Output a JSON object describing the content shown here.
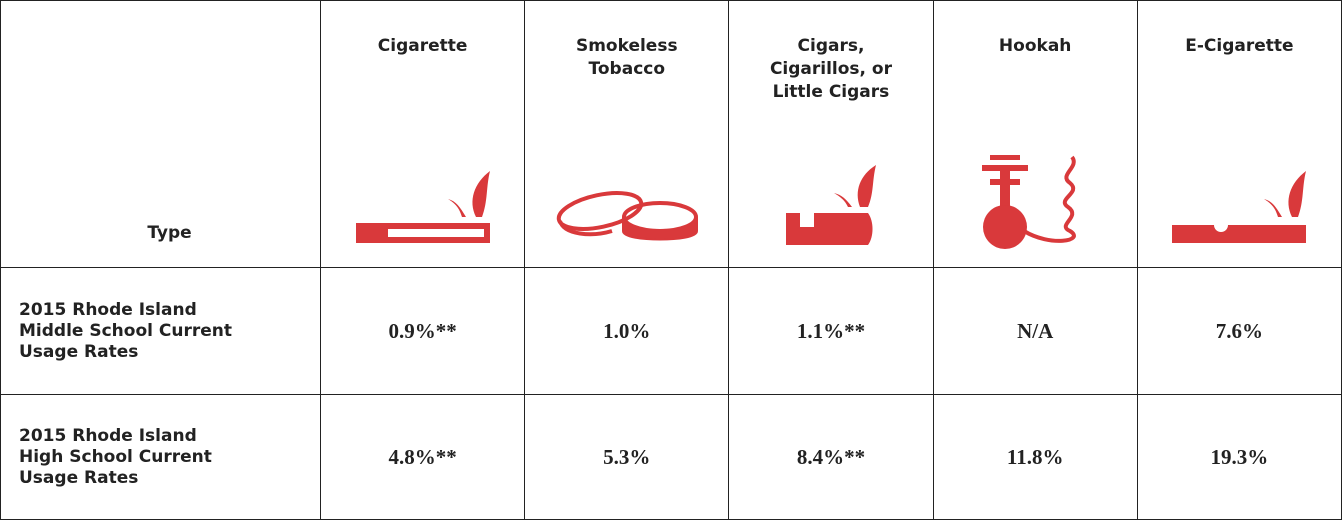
{
  "header": {
    "type": "Type"
  },
  "columns": [
    {
      "lines": [
        "Cigarette"
      ]
    },
    {
      "lines": [
        "Smokeless",
        "Tobacco"
      ]
    },
    {
      "lines": [
        "Cigars,",
        "Cigarillos, or",
        "Little Cigars"
      ]
    },
    {
      "lines": [
        "Hookah"
      ]
    },
    {
      "lines": [
        "E-Cigarette"
      ]
    }
  ],
  "rows": [
    {
      "label": [
        "2015 Rhode Island",
        "Middle School Current",
        "Usage Rates"
      ],
      "cells": [
        "0.9%**",
        "1.0%",
        "1.1%**",
        "N/A",
        "7.6%"
      ]
    },
    {
      "label": [
        "2015 Rhode Island",
        "High School Current",
        "Usage Rates"
      ],
      "cells": [
        "4.8%**",
        "5.3%",
        "8.4%**",
        "11.8%",
        "19.3%"
      ]
    }
  ]
}
